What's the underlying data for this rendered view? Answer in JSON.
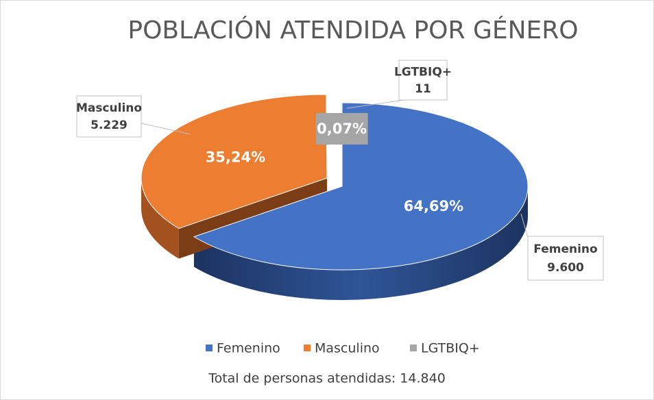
{
  "chart_data": {
    "type": "pie3d",
    "title": "POBLACIÓN ATENDIDA POR GÉNERO",
    "categories": [
      "Femenino",
      "Masculino",
      "LGTBIQ+"
    ],
    "values": [
      9600,
      5229,
      11
    ],
    "value_labels": [
      "9.600",
      "5.229",
      "11"
    ],
    "percentages": [
      64.69,
      35.24,
      0.07
    ],
    "percentage_labels": [
      "64,69%",
      "35,24%",
      "0,07%"
    ],
    "colors": [
      "#4472c4",
      "#ed7d31",
      "#a5a5a5"
    ],
    "legend": "bottom",
    "footnote": "Total de personas atendidas: 14.840"
  }
}
